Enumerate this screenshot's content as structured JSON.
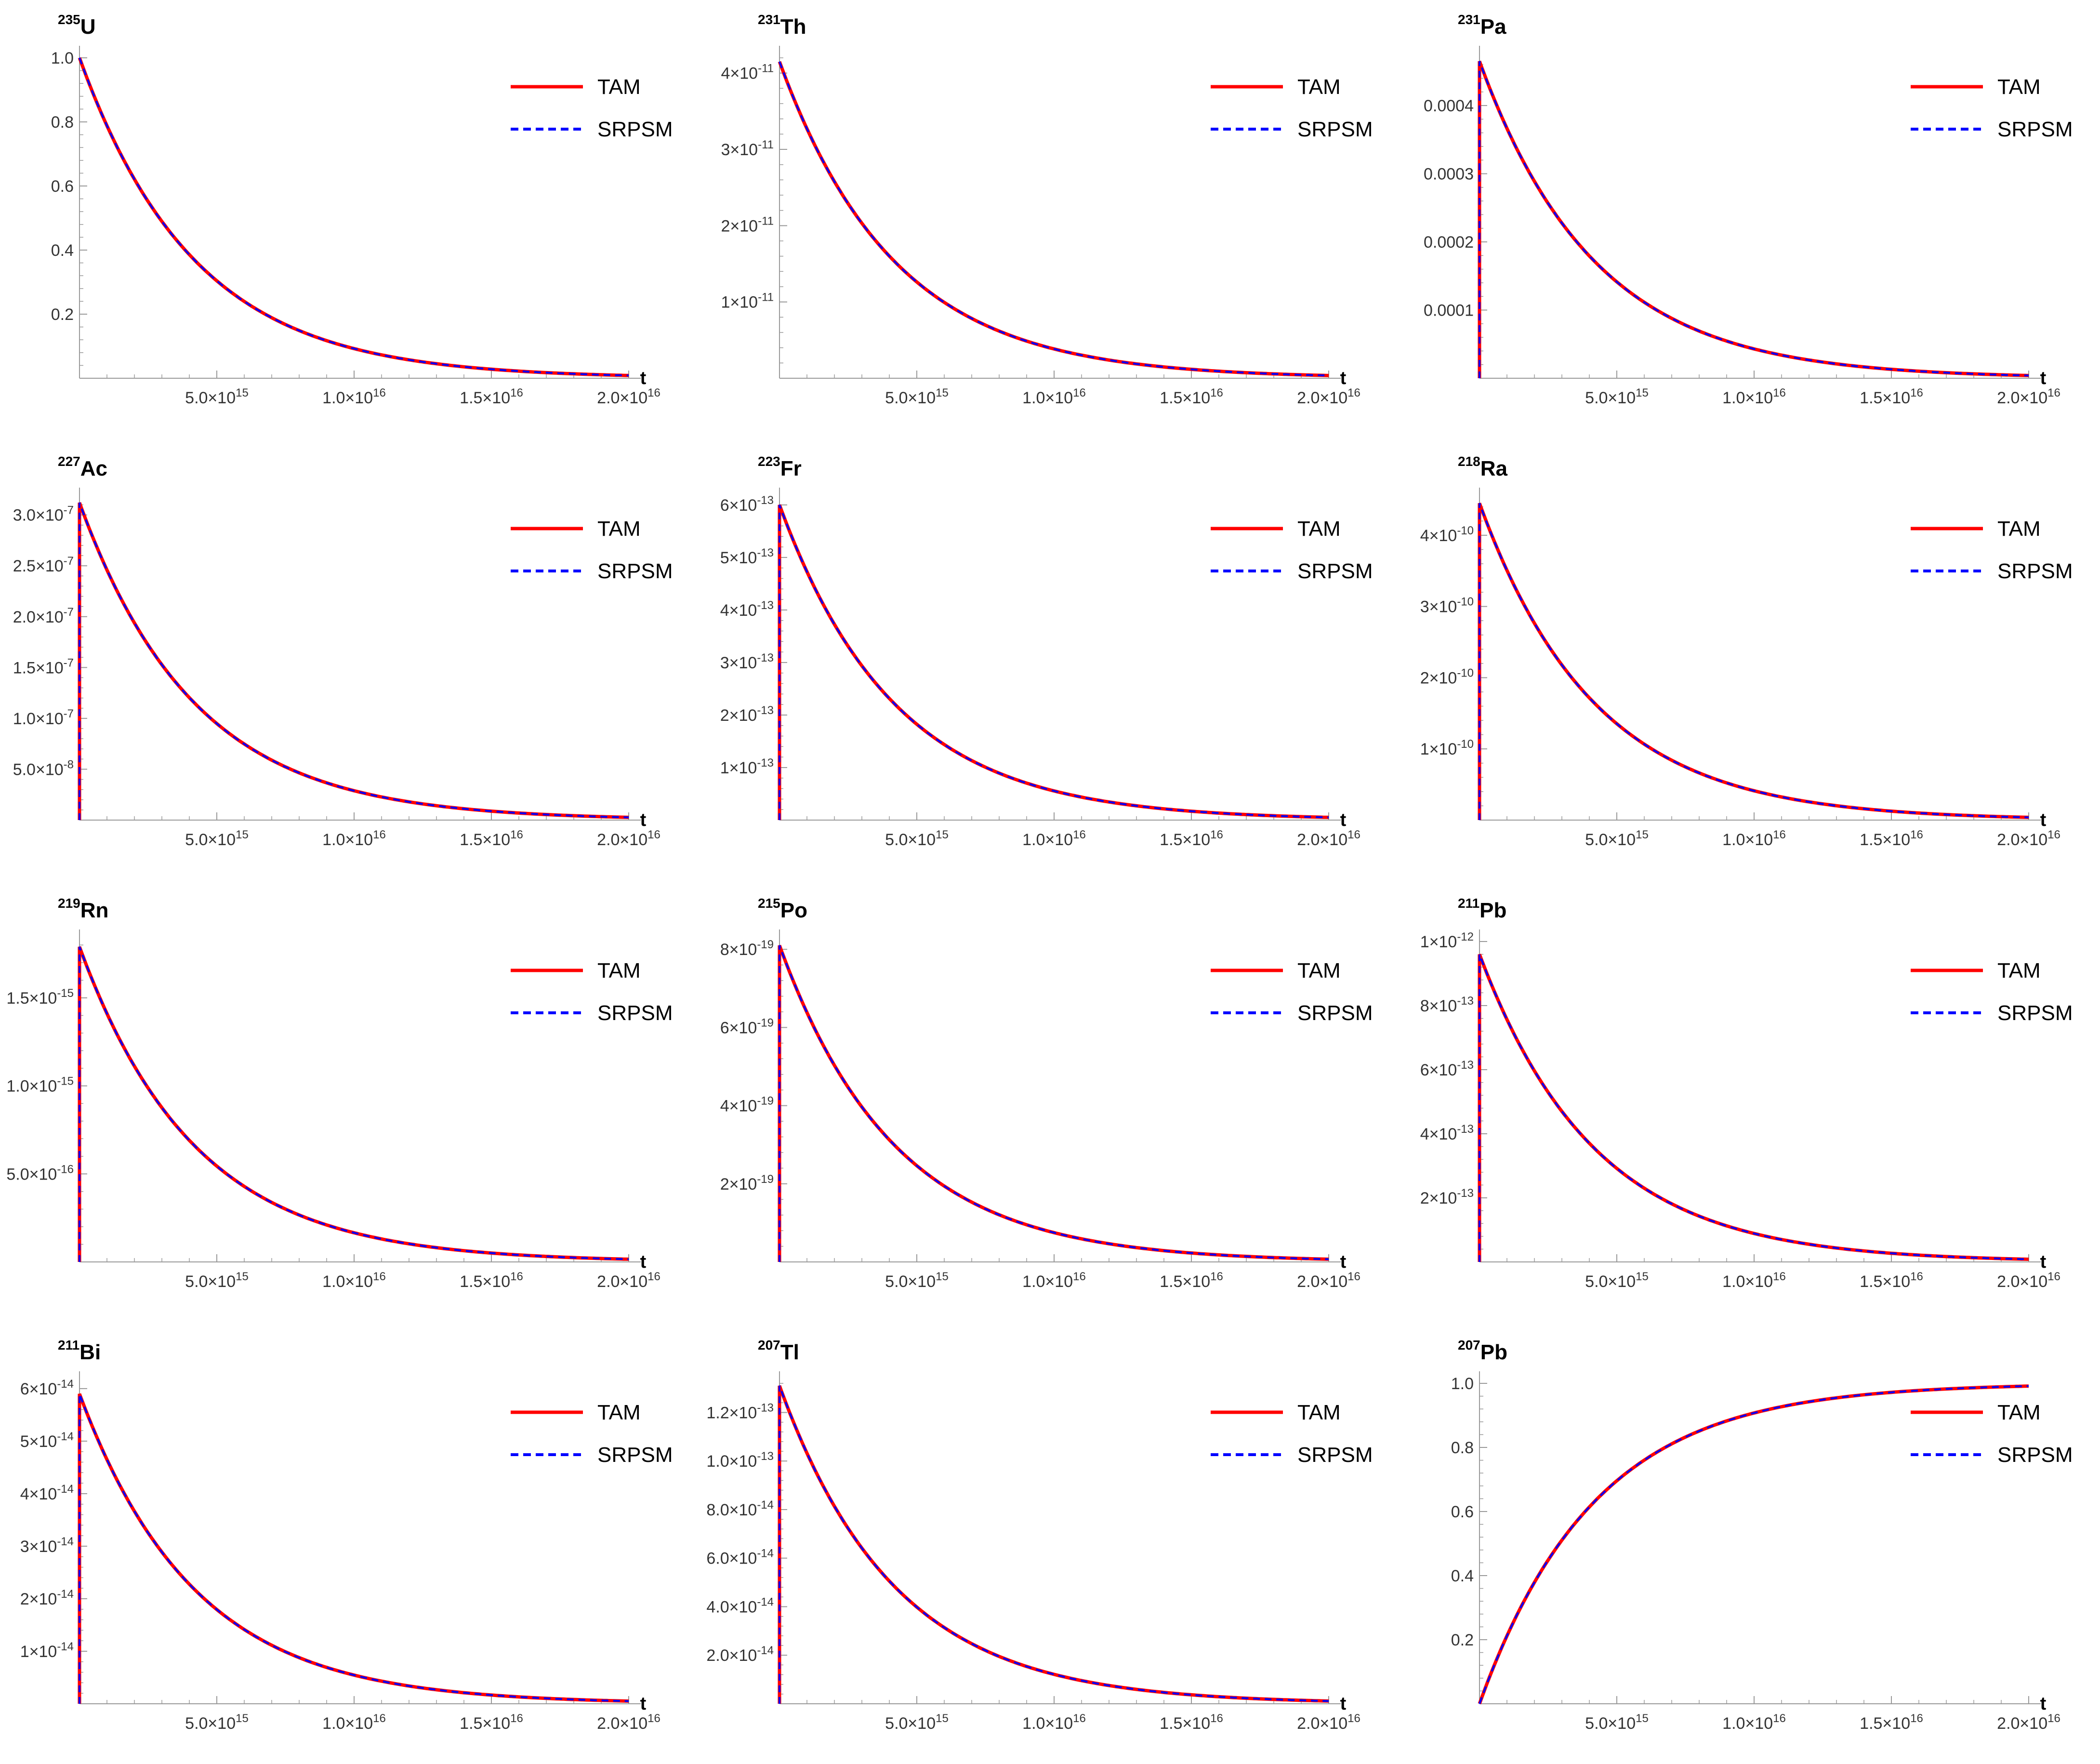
{
  "figure": {
    "colors": {
      "tam": "#ff0000",
      "srpsm": "#0000ff",
      "axis": "#9a9a9a"
    },
    "legend": [
      "TAM",
      "SRPSM"
    ],
    "x_axis": {
      "label": "t",
      "range": [
        0,
        2e+16
      ],
      "ticks": [
        {
          "value": 5000000000000000.0,
          "mant": "5.0",
          "exp": "15"
        },
        {
          "value": 1e+16,
          "mant": "1.0",
          "exp": "16"
        },
        {
          "value": 1.5e+16,
          "mant": "1.5",
          "exp": "16"
        },
        {
          "value": 2e+16,
          "mant": "2.0",
          "exp": "16"
        }
      ]
    }
  },
  "chart_data": [
    {
      "type": "line",
      "mass": "235",
      "symbol": "U",
      "xlabel": "t",
      "xlim": [
        0,
        2e+16
      ],
      "ylim": [
        0,
        1.0
      ],
      "curve": {
        "kind": "decay",
        "peak": 1.0,
        "rise": false
      },
      "series": [
        {
          "name": "TAM"
        },
        {
          "name": "SRPSM"
        }
      ],
      "yticks": [
        {
          "value": 0.2,
          "label": "0.2"
        },
        {
          "value": 0.4,
          "label": "0.4"
        },
        {
          "value": 0.6,
          "label": "0.6"
        },
        {
          "value": 0.8,
          "label": "0.8"
        },
        {
          "value": 1.0,
          "label": "1.0"
        }
      ]
    },
    {
      "type": "line",
      "mass": "231",
      "symbol": "Th",
      "xlabel": "t",
      "xlim": [
        0,
        2e+16
      ],
      "ylim": [
        0,
        4.2e-11
      ],
      "curve": {
        "kind": "decay",
        "peak": 4.15e-11,
        "rise": false
      },
      "series": [
        {
          "name": "TAM"
        },
        {
          "name": "SRPSM"
        }
      ],
      "yticks": [
        {
          "value": 1e-11,
          "mant": "1",
          "exp": "-11"
        },
        {
          "value": 2e-11,
          "mant": "2",
          "exp": "-11"
        },
        {
          "value": 3e-11,
          "mant": "3",
          "exp": "-11"
        },
        {
          "value": 4e-11,
          "mant": "4",
          "exp": "-11"
        }
      ]
    },
    {
      "type": "line",
      "mass": "231",
      "symbol": "Pa",
      "xlabel": "t",
      "xlim": [
        0,
        2e+16
      ],
      "ylim": [
        0,
        0.00047
      ],
      "curve": {
        "kind": "decay",
        "peak": 0.000465,
        "rise": true
      },
      "series": [
        {
          "name": "TAM"
        },
        {
          "name": "SRPSM"
        }
      ],
      "yticks": [
        {
          "value": 0.0001,
          "label": "0.0001"
        },
        {
          "value": 0.0002,
          "label": "0.0002"
        },
        {
          "value": 0.0003,
          "label": "0.0003"
        },
        {
          "value": 0.0004,
          "label": "0.0004"
        }
      ]
    },
    {
      "type": "line",
      "mass": "227",
      "symbol": "Ac",
      "xlabel": "t",
      "xlim": [
        0,
        2e+16
      ],
      "ylim": [
        0,
        3.15e-07
      ],
      "curve": {
        "kind": "decay",
        "peak": 3.12e-07,
        "rise": true
      },
      "series": [
        {
          "name": "TAM"
        },
        {
          "name": "SRPSM"
        }
      ],
      "yticks": [
        {
          "value": 5e-08,
          "mant": "5.0",
          "exp": "-8"
        },
        {
          "value": 1e-07,
          "mant": "1.0",
          "exp": "-7"
        },
        {
          "value": 1.5e-07,
          "mant": "1.5",
          "exp": "-7"
        },
        {
          "value": 2e-07,
          "mant": "2.0",
          "exp": "-7"
        },
        {
          "value": 2.5e-07,
          "mant": "2.5",
          "exp": "-7"
        },
        {
          "value": 3e-07,
          "mant": "3.0",
          "exp": "-7"
        }
      ]
    },
    {
      "type": "line",
      "mass": "223",
      "symbol": "Fr",
      "xlabel": "t",
      "xlim": [
        0,
        2e+16
      ],
      "ylim": [
        0,
        6.1e-13
      ],
      "curve": {
        "kind": "decay",
        "peak": 6e-13,
        "rise": true
      },
      "series": [
        {
          "name": "TAM"
        },
        {
          "name": "SRPSM"
        }
      ],
      "yticks": [
        {
          "value": 1e-13,
          "mant": "1",
          "exp": "-13"
        },
        {
          "value": 2e-13,
          "mant": "2",
          "exp": "-13"
        },
        {
          "value": 3e-13,
          "mant": "3",
          "exp": "-13"
        },
        {
          "value": 4e-13,
          "mant": "4",
          "exp": "-13"
        },
        {
          "value": 5e-13,
          "mant": "5",
          "exp": "-13"
        },
        {
          "value": 6e-13,
          "mant": "6",
          "exp": "-13"
        }
      ]
    },
    {
      "type": "line",
      "mass": "218",
      "symbol": "Ra",
      "xlabel": "t",
      "xlim": [
        0,
        2e+16
      ],
      "ylim": [
        0,
        4.5e-10
      ],
      "curve": {
        "kind": "decay",
        "peak": 4.45e-10,
        "rise": true
      },
      "series": [
        {
          "name": "TAM"
        },
        {
          "name": "SRPSM"
        }
      ],
      "yticks": [
        {
          "value": 1e-10,
          "mant": "1",
          "exp": "-10"
        },
        {
          "value": 2e-10,
          "mant": "2",
          "exp": "-10"
        },
        {
          "value": 3e-10,
          "mant": "3",
          "exp": "-10"
        },
        {
          "value": 4e-10,
          "mant": "4",
          "exp": "-10"
        }
      ]
    },
    {
      "type": "line",
      "mass": "219",
      "symbol": "Rn",
      "xlabel": "t",
      "xlim": [
        0,
        2e+16
      ],
      "ylim": [
        0,
        1.82e-15
      ],
      "curve": {
        "kind": "decay",
        "peak": 1.79e-15,
        "rise": true
      },
      "series": [
        {
          "name": "TAM"
        },
        {
          "name": "SRPSM"
        }
      ],
      "yticks": [
        {
          "value": 5e-16,
          "mant": "5.0",
          "exp": "-16"
        },
        {
          "value": 1e-15,
          "mant": "1.0",
          "exp": "-15"
        },
        {
          "value": 1.5e-15,
          "mant": "1.5",
          "exp": "-15"
        }
      ]
    },
    {
      "type": "line",
      "mass": "215",
      "symbol": "Po",
      "xlabel": "t",
      "xlim": [
        0,
        2e+16
      ],
      "ylim": [
        0,
        8.2e-19
      ],
      "curve": {
        "kind": "decay",
        "peak": 8.1e-19,
        "rise": true
      },
      "series": [
        {
          "name": "TAM"
        },
        {
          "name": "SRPSM"
        }
      ],
      "yticks": [
        {
          "value": 2e-19,
          "mant": "2",
          "exp": "-19"
        },
        {
          "value": 4e-19,
          "mant": "4",
          "exp": "-19"
        },
        {
          "value": 6e-19,
          "mant": "6",
          "exp": "-19"
        },
        {
          "value": 8e-19,
          "mant": "8",
          "exp": "-19"
        }
      ]
    },
    {
      "type": "line",
      "mass": "211",
      "symbol": "Pb",
      "xlabel": "t",
      "xlim": [
        0,
        2e+16
      ],
      "ylim": [
        0,
        1e-12
      ],
      "curve": {
        "kind": "decay",
        "peak": 9.6e-13,
        "rise": true
      },
      "series": [
        {
          "name": "TAM"
        },
        {
          "name": "SRPSM"
        }
      ],
      "yticks": [
        {
          "value": 2e-13,
          "mant": "2",
          "exp": "-13"
        },
        {
          "value": 4e-13,
          "mant": "4",
          "exp": "-13"
        },
        {
          "value": 6e-13,
          "mant": "6",
          "exp": "-13"
        },
        {
          "value": 8e-13,
          "mant": "8",
          "exp": "-13"
        },
        {
          "value": 1e-12,
          "mant": "1",
          "exp": "-12"
        }
      ]
    },
    {
      "type": "line",
      "mass": "211",
      "symbol": "Bi",
      "xlabel": "t",
      "xlim": [
        0,
        2e+16
      ],
      "ylim": [
        0,
        6.1e-14
      ],
      "curve": {
        "kind": "decay",
        "peak": 5.9e-14,
        "rise": true
      },
      "series": [
        {
          "name": "TAM"
        },
        {
          "name": "SRPSM"
        }
      ],
      "yticks": [
        {
          "value": 1e-14,
          "mant": "1",
          "exp": "-14"
        },
        {
          "value": 2e-14,
          "mant": "2",
          "exp": "-14"
        },
        {
          "value": 3e-14,
          "mant": "3",
          "exp": "-14"
        },
        {
          "value": 4e-14,
          "mant": "4",
          "exp": "-14"
        },
        {
          "value": 5e-14,
          "mant": "5",
          "exp": "-14"
        },
        {
          "value": 6e-14,
          "mant": "6",
          "exp": "-14"
        }
      ]
    },
    {
      "type": "line",
      "mass": "207",
      "symbol": "Tl",
      "xlabel": "t",
      "xlim": [
        0,
        2e+16
      ],
      "ylim": [
        0,
        1.32e-13
      ],
      "curve": {
        "kind": "decay",
        "peak": 1.31e-13,
        "rise": true
      },
      "series": [
        {
          "name": "TAM"
        },
        {
          "name": "SRPSM"
        }
      ],
      "yticks": [
        {
          "value": 2e-14,
          "mant": "2.0",
          "exp": "-14"
        },
        {
          "value": 4e-14,
          "mant": "4.0",
          "exp": "-14"
        },
        {
          "value": 6e-14,
          "mant": "6.0",
          "exp": "-14"
        },
        {
          "value": 8e-14,
          "mant": "8.0",
          "exp": "-14"
        },
        {
          "value": 1e-13,
          "mant": "1.0",
          "exp": "-13"
        },
        {
          "value": 1.2e-13,
          "mant": "1.2",
          "exp": "-13"
        }
      ]
    },
    {
      "type": "line",
      "mass": "207",
      "symbol": "Pb",
      "xlabel": "t",
      "xlim": [
        0,
        2e+16
      ],
      "ylim": [
        0,
        1.0
      ],
      "curve": {
        "kind": "growth",
        "peak": 1.0,
        "rise": false
      },
      "series": [
        {
          "name": "TAM"
        },
        {
          "name": "SRPSM"
        }
      ],
      "yticks": [
        {
          "value": 0.2,
          "label": "0.2"
        },
        {
          "value": 0.4,
          "label": "0.4"
        },
        {
          "value": 0.6,
          "label": "0.6"
        },
        {
          "value": 0.8,
          "label": "0.8"
        },
        {
          "value": 1.0,
          "label": "1.0"
        }
      ]
    }
  ]
}
